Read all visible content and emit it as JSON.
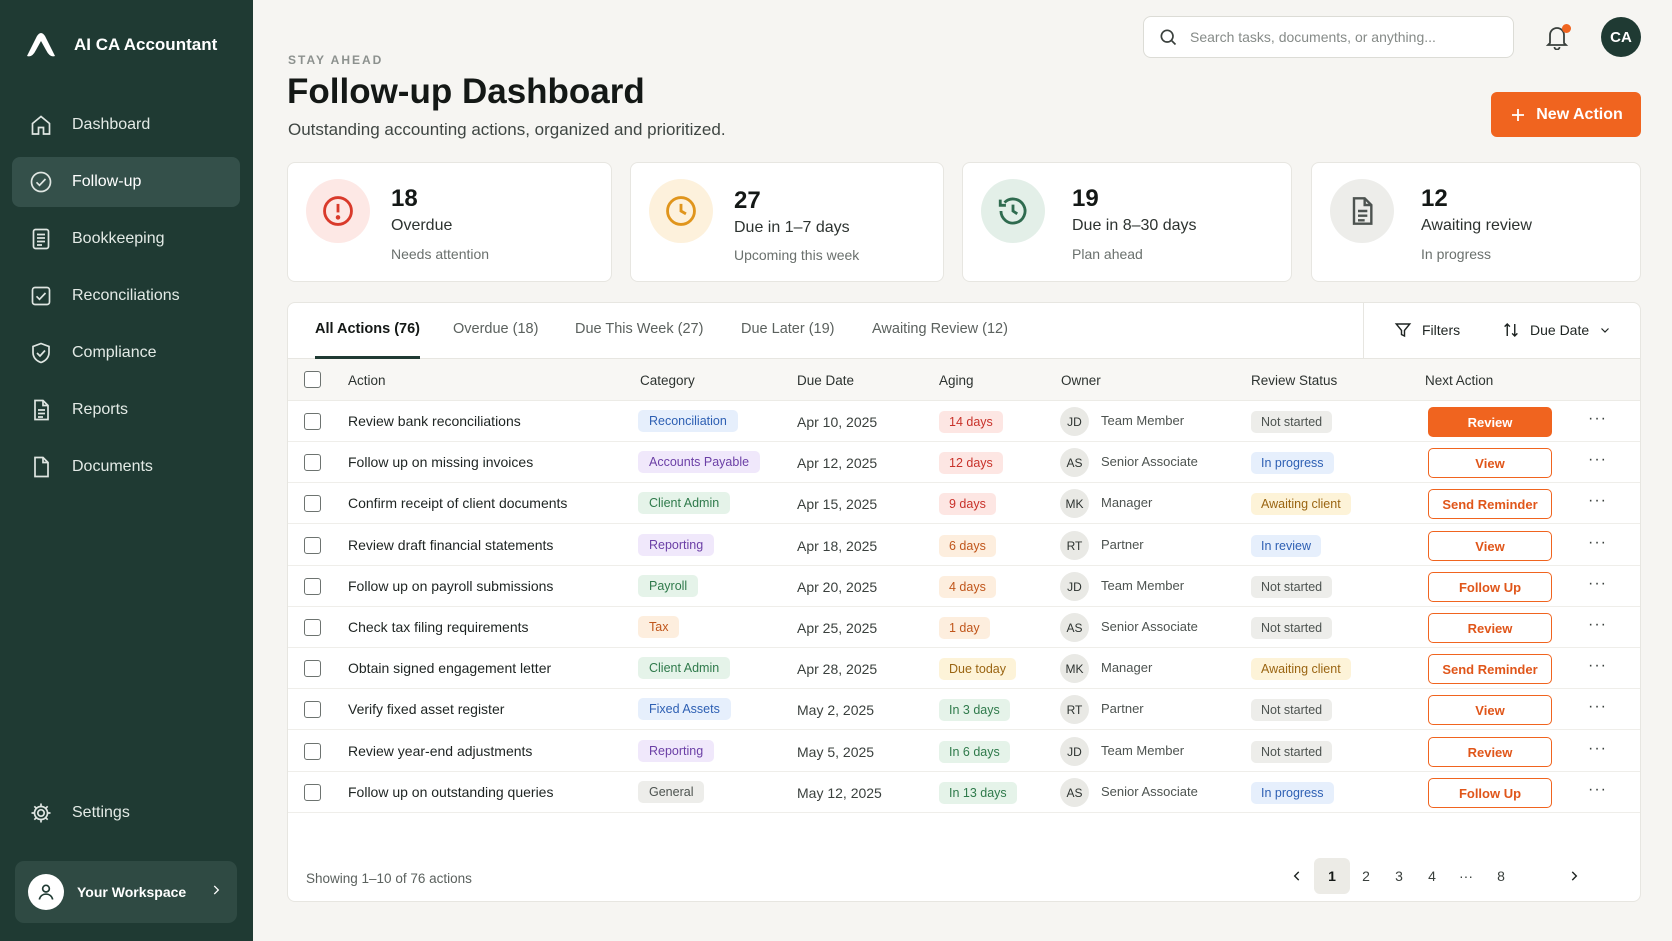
{
  "app": {
    "name": "AI CA Accountant"
  },
  "sidebar": {
    "items": [
      {
        "label": "Dashboard",
        "icon": "home-icon"
      },
      {
        "label": "Follow-up",
        "icon": "check-circle-icon",
        "active": true
      },
      {
        "label": "Bookkeeping",
        "icon": "ledger-icon"
      },
      {
        "label": "Reconciliations",
        "icon": "check-square-icon"
      },
      {
        "label": "Compliance",
        "icon": "shield-check-icon"
      },
      {
        "label": "Reports",
        "icon": "report-icon"
      },
      {
        "label": "Documents",
        "icon": "document-icon"
      }
    ],
    "settings_label": "Settings",
    "workspace_label": "Your Workspace"
  },
  "header": {
    "eyebrow": "STAY AHEAD",
    "title": "Follow-up Dashboard",
    "subtitle": "Outstanding accounting actions, organized and prioritized.",
    "search_placeholder": "Search tasks, documents, or anything...",
    "avatar_initials": "CA",
    "new_action_label": "New Action"
  },
  "stats": [
    {
      "value": "18",
      "label": "Overdue",
      "sub": "Needs attention",
      "icon": "alert-icon",
      "color": "#d93a2b",
      "bg": "#fde8e5"
    },
    {
      "value": "27",
      "label": "Due in 1–7 days",
      "sub": "Upcoming this week",
      "icon": "clock-icon",
      "color": "#e0951c",
      "bg": "#fdf1dc"
    },
    {
      "value": "19",
      "label": "Due in 8–30 days",
      "sub": "Plan ahead",
      "icon": "history-icon",
      "color": "#2f6b4f",
      "bg": "#e3efe8"
    },
    {
      "value": "12",
      "label": "Awaiting review",
      "sub": "In progress",
      "icon": "file-text-icon",
      "color": "#4d5350",
      "bg": "#ededea"
    }
  ],
  "tabs": [
    {
      "label": "All Actions (76)",
      "active": true
    },
    {
      "label": "Overdue (18)"
    },
    {
      "label": "Due This Week (27)"
    },
    {
      "label": "Due Later (19)"
    },
    {
      "label": "Awaiting Review (12)"
    }
  ],
  "tools": {
    "filters_label": "Filters",
    "sort_label": "Due Date"
  },
  "columns": [
    "Action",
    "Category",
    "Due Date",
    "Aging",
    "Owner",
    "Review Status",
    "Next Action"
  ],
  "rows": [
    {
      "action": "Review bank reconciliations",
      "category": "Reconciliation",
      "cat_style": "blue",
      "due": "Apr 10, 2025",
      "aging": "14 days",
      "aging_style": "red",
      "initials": "JD",
      "owner": "Team Member",
      "status": "Not started",
      "status_style": "gray",
      "next": "Review",
      "primary": true
    },
    {
      "action": "Follow up on missing invoices",
      "category": "Accounts Payable",
      "cat_style": "purple",
      "due": "Apr 12, 2025",
      "aging": "12 days",
      "aging_style": "red",
      "initials": "AS",
      "owner": "Senior Associate",
      "status": "In progress",
      "status_style": "blue",
      "next": "View"
    },
    {
      "action": "Confirm receipt of client documents",
      "category": "Client Admin",
      "cat_style": "green",
      "due": "Apr 15, 2025",
      "aging": "9 days",
      "aging_style": "red",
      "initials": "MK",
      "owner": "Manager",
      "status": "Awaiting client",
      "status_style": "yellow",
      "next": "Send Reminder"
    },
    {
      "action": "Review draft financial statements",
      "category": "Reporting",
      "cat_style": "purple",
      "due": "Apr 18, 2025",
      "aging": "6 days",
      "aging_style": "orange",
      "initials": "RT",
      "owner": "Partner",
      "status": "In review",
      "status_style": "blue",
      "next": "View"
    },
    {
      "action": "Follow up on payroll submissions",
      "category": "Payroll",
      "cat_style": "green",
      "due": "Apr 20, 2025",
      "aging": "4 days",
      "aging_style": "orange",
      "initials": "JD",
      "owner": "Team Member",
      "status": "Not started",
      "status_style": "gray",
      "next": "Follow Up"
    },
    {
      "action": "Check tax filing requirements",
      "category": "Tax",
      "cat_style": "orange",
      "due": "Apr 25, 2025",
      "aging": "1 day",
      "aging_style": "orange",
      "initials": "AS",
      "owner": "Senior Associate",
      "status": "Not started",
      "status_style": "gray",
      "next": "Review"
    },
    {
      "action": "Obtain signed engagement letter",
      "category": "Client Admin",
      "cat_style": "green",
      "due": "Apr 28, 2025",
      "aging": "Due today",
      "aging_style": "yellow",
      "initials": "MK",
      "owner": "Manager",
      "status": "Awaiting client",
      "status_style": "yellow",
      "next": "Send Reminder"
    },
    {
      "action": "Verify fixed asset register",
      "category": "Fixed Assets",
      "cat_style": "blue",
      "due": "May 2, 2025",
      "aging": "In 3 days",
      "aging_style": "green",
      "initials": "RT",
      "owner": "Partner",
      "status": "Not started",
      "status_style": "gray",
      "next": "View"
    },
    {
      "action": "Review year-end adjustments",
      "category": "Reporting",
      "cat_style": "purple",
      "due": "May 5, 2025",
      "aging": "In 6 days",
      "aging_style": "green",
      "initials": "JD",
      "owner": "Team Member",
      "status": "Not started",
      "status_style": "gray",
      "next": "Review"
    },
    {
      "action": "Follow up on outstanding queries",
      "category": "General",
      "cat_style": "gray",
      "due": "May 12, 2025",
      "aging": "In 13 days",
      "aging_style": "green",
      "initials": "AS",
      "owner": "Senior Associate",
      "status": "In progress",
      "status_style": "blue",
      "next": "Follow Up"
    }
  ],
  "footer": {
    "showing": "Showing 1–10 of 76 actions",
    "pages": [
      "1",
      "2",
      "3",
      "4",
      "···",
      "8"
    ],
    "current_page": "1"
  },
  "pill_colors": {
    "blue": {
      "bg": "#e6effc",
      "fg": "#2d5fb3"
    },
    "purple": {
      "bg": "#f0e8fb",
      "fg": "#6b3fa6"
    },
    "green": {
      "bg": "#e5f3e9",
      "fg": "#2f7a4b"
    },
    "orange": {
      "bg": "#fdeede",
      "fg": "#c0561b"
    },
    "red": {
      "bg": "#fde6e3",
      "fg": "#c8322a"
    },
    "yellow": {
      "bg": "#fdf3d8",
      "fg": "#9a6512"
    },
    "gray": {
      "bg": "#ededea",
      "fg": "#4d5350"
    }
  }
}
